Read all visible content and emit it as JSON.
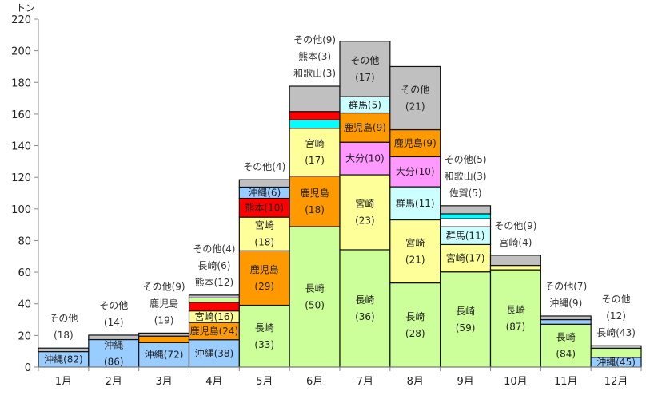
{
  "chart_data": {
    "type": "bar",
    "stacked": true,
    "title": "",
    "ylabel": "トン",
    "xlabel": "",
    "ylim": [
      0,
      220
    ],
    "yticks": [
      0,
      20,
      40,
      60,
      80,
      100,
      120,
      140,
      160,
      180,
      200,
      220
    ],
    "grid": false,
    "colors": {
      "沖縄": "#99ccff",
      "鹿児島": "#ff9900",
      "宮崎": "#ffff99",
      "熊本": "#ff0000",
      "長崎": "#ccff99",
      "大分": "#ff99ff",
      "群馬": "#ccffff",
      "和歌山": "#00ffff",
      "佐賀": "#ffffff",
      "その他": "#c0c0c0"
    },
    "categories": [
      "1月",
      "2月",
      "3月",
      "4月",
      "5月",
      "6月",
      "7月",
      "8月",
      "9月",
      "10月",
      "11月",
      "12月"
    ],
    "months": [
      {
        "segments": [
          {
            "name": "沖縄",
            "value": 9.8,
            "label": [
              "沖縄(82)"
            ]
          },
          {
            "name": "その他",
            "value": 2.2
          }
        ],
        "outside": [
          "その他",
          "(18)"
        ]
      },
      {
        "segments": [
          {
            "name": "沖縄",
            "value": 17.4,
            "label": [
              "沖縄",
              "(86)"
            ]
          },
          {
            "name": "その他",
            "value": 2.8
          }
        ],
        "outside": [
          "その他",
          "(14)"
        ]
      },
      {
        "segments": [
          {
            "name": "沖縄",
            "value": 15.5,
            "label": [
              "沖縄(72)"
            ]
          },
          {
            "name": "鹿児島",
            "value": 4.1
          },
          {
            "name": "その他",
            "value": 1.9
          }
        ],
        "outside": [
          "その他(9)",
          "鹿児島",
          "(19)"
        ]
      },
      {
        "segments": [
          {
            "name": "沖縄",
            "value": 17.3,
            "label": [
              "沖縄(38)"
            ]
          },
          {
            "name": "鹿児島",
            "value": 10.9,
            "label": [
              "鹿児島(24)"
            ]
          },
          {
            "name": "宮崎",
            "value": 7.3,
            "label": [
              "宮崎(16)"
            ]
          },
          {
            "name": "熊本",
            "value": 5.5
          },
          {
            "name": "長崎",
            "value": 2.7
          },
          {
            "name": "その他",
            "value": 1.8
          }
        ],
        "outside": [
          "その他(4)",
          "長崎(6)",
          "熊本(12)"
        ]
      },
      {
        "segments": [
          {
            "name": "長崎",
            "value": 39.1,
            "label": [
              "長崎",
              "(33)"
            ]
          },
          {
            "name": "鹿児島",
            "value": 34.4,
            "label": [
              "鹿児島",
              "(29)"
            ]
          },
          {
            "name": "宮崎",
            "value": 21.3,
            "label": [
              "宮崎",
              "(18)"
            ]
          },
          {
            "name": "熊本",
            "value": 11.9,
            "label": [
              "熊本(10)"
            ]
          },
          {
            "name": "沖縄",
            "value": 7.1,
            "label": [
              "沖縄(6)"
            ]
          },
          {
            "name": "その他",
            "value": 4.7
          }
        ],
        "outside": [
          "その他(4)"
        ]
      },
      {
        "segments": [
          {
            "name": "長崎",
            "value": 88.8,
            "label": [
              "長崎",
              "(50)"
            ]
          },
          {
            "name": "鹿児島",
            "value": 32.0,
            "label": [
              "鹿児島",
              "(18)"
            ]
          },
          {
            "name": "宮崎",
            "value": 30.2,
            "label": [
              "宮崎",
              "(17)"
            ]
          },
          {
            "name": "和歌山",
            "value": 5.3
          },
          {
            "name": "熊本",
            "value": 5.3
          },
          {
            "name": "その他",
            "value": 16.0
          }
        ],
        "outside": [
          "その他(9)",
          "熊本(3)",
          "和歌山(3)"
        ]
      },
      {
        "segments": [
          {
            "name": "長崎",
            "value": 74.2,
            "label": [
              "長崎",
              "(36)"
            ]
          },
          {
            "name": "宮崎",
            "value": 47.4,
            "label": [
              "宮崎",
              "(23)"
            ]
          },
          {
            "name": "大分",
            "value": 20.6,
            "label": [
              "大分(10)"
            ]
          },
          {
            "name": "鹿児島",
            "value": 18.5,
            "label": [
              "鹿児島(9)"
            ]
          },
          {
            "name": "群馬",
            "value": 10.3,
            "label": [
              "群馬(5)"
            ]
          },
          {
            "name": "その他",
            "value": 35.0,
            "label": [
              "その他",
              "(17)"
            ]
          }
        ],
        "outside": []
      },
      {
        "segments": [
          {
            "name": "長崎",
            "value": 53.2,
            "label": [
              "長崎",
              "(28)"
            ]
          },
          {
            "name": "宮崎",
            "value": 39.9,
            "label": [
              "宮崎",
              "(21)"
            ]
          },
          {
            "name": "群馬",
            "value": 20.9,
            "label": [
              "群馬(11)"
            ]
          },
          {
            "name": "大分",
            "value": 19.0,
            "label": [
              "大分(10)"
            ]
          },
          {
            "name": "鹿児島",
            "value": 17.1,
            "label": [
              "鹿児島(9)"
            ]
          },
          {
            "name": "その他",
            "value": 39.9,
            "label": [
              "その他",
              "(21)"
            ]
          }
        ],
        "outside": []
      },
      {
        "segments": [
          {
            "name": "長崎",
            "value": 60.2,
            "label": [
              "長崎",
              "(59)"
            ]
          },
          {
            "name": "宮崎",
            "value": 17.3,
            "label": [
              "宮崎(17)"
            ]
          },
          {
            "name": "群馬",
            "value": 11.2,
            "label": [
              "群馬(11)"
            ]
          },
          {
            "name": "佐賀",
            "value": 5.1
          },
          {
            "name": "和歌山",
            "value": 3.1
          },
          {
            "name": "その他",
            "value": 5.1
          }
        ],
        "outside": [
          "その他(5)",
          "和歌山(3)",
          "佐賀(5)"
        ]
      },
      {
        "segments": [
          {
            "name": "長崎",
            "value": 61.5,
            "label": [
              "長崎",
              "(87)"
            ]
          },
          {
            "name": "宮崎",
            "value": 2.8
          },
          {
            "name": "その他",
            "value": 6.4
          }
        ],
        "outside": [
          "その他(9)",
          "宮崎(4)"
        ]
      },
      {
        "segments": [
          {
            "name": "長崎",
            "value": 27.1,
            "label": [
              "長崎",
              "(84)"
            ]
          },
          {
            "name": "沖縄",
            "value": 2.9
          },
          {
            "name": "その他",
            "value": 2.3
          }
        ],
        "outside": [
          "その他(7)",
          "沖縄(9)"
        ]
      },
      {
        "segments": [
          {
            "name": "沖縄",
            "value": 6.1,
            "label": [
              "沖縄(45)"
            ]
          },
          {
            "name": "長崎",
            "value": 5.8
          },
          {
            "name": "その他",
            "value": 1.6
          }
        ],
        "outside": [
          "その他",
          "(12)",
          "長崎(43)"
        ]
      }
    ]
  }
}
